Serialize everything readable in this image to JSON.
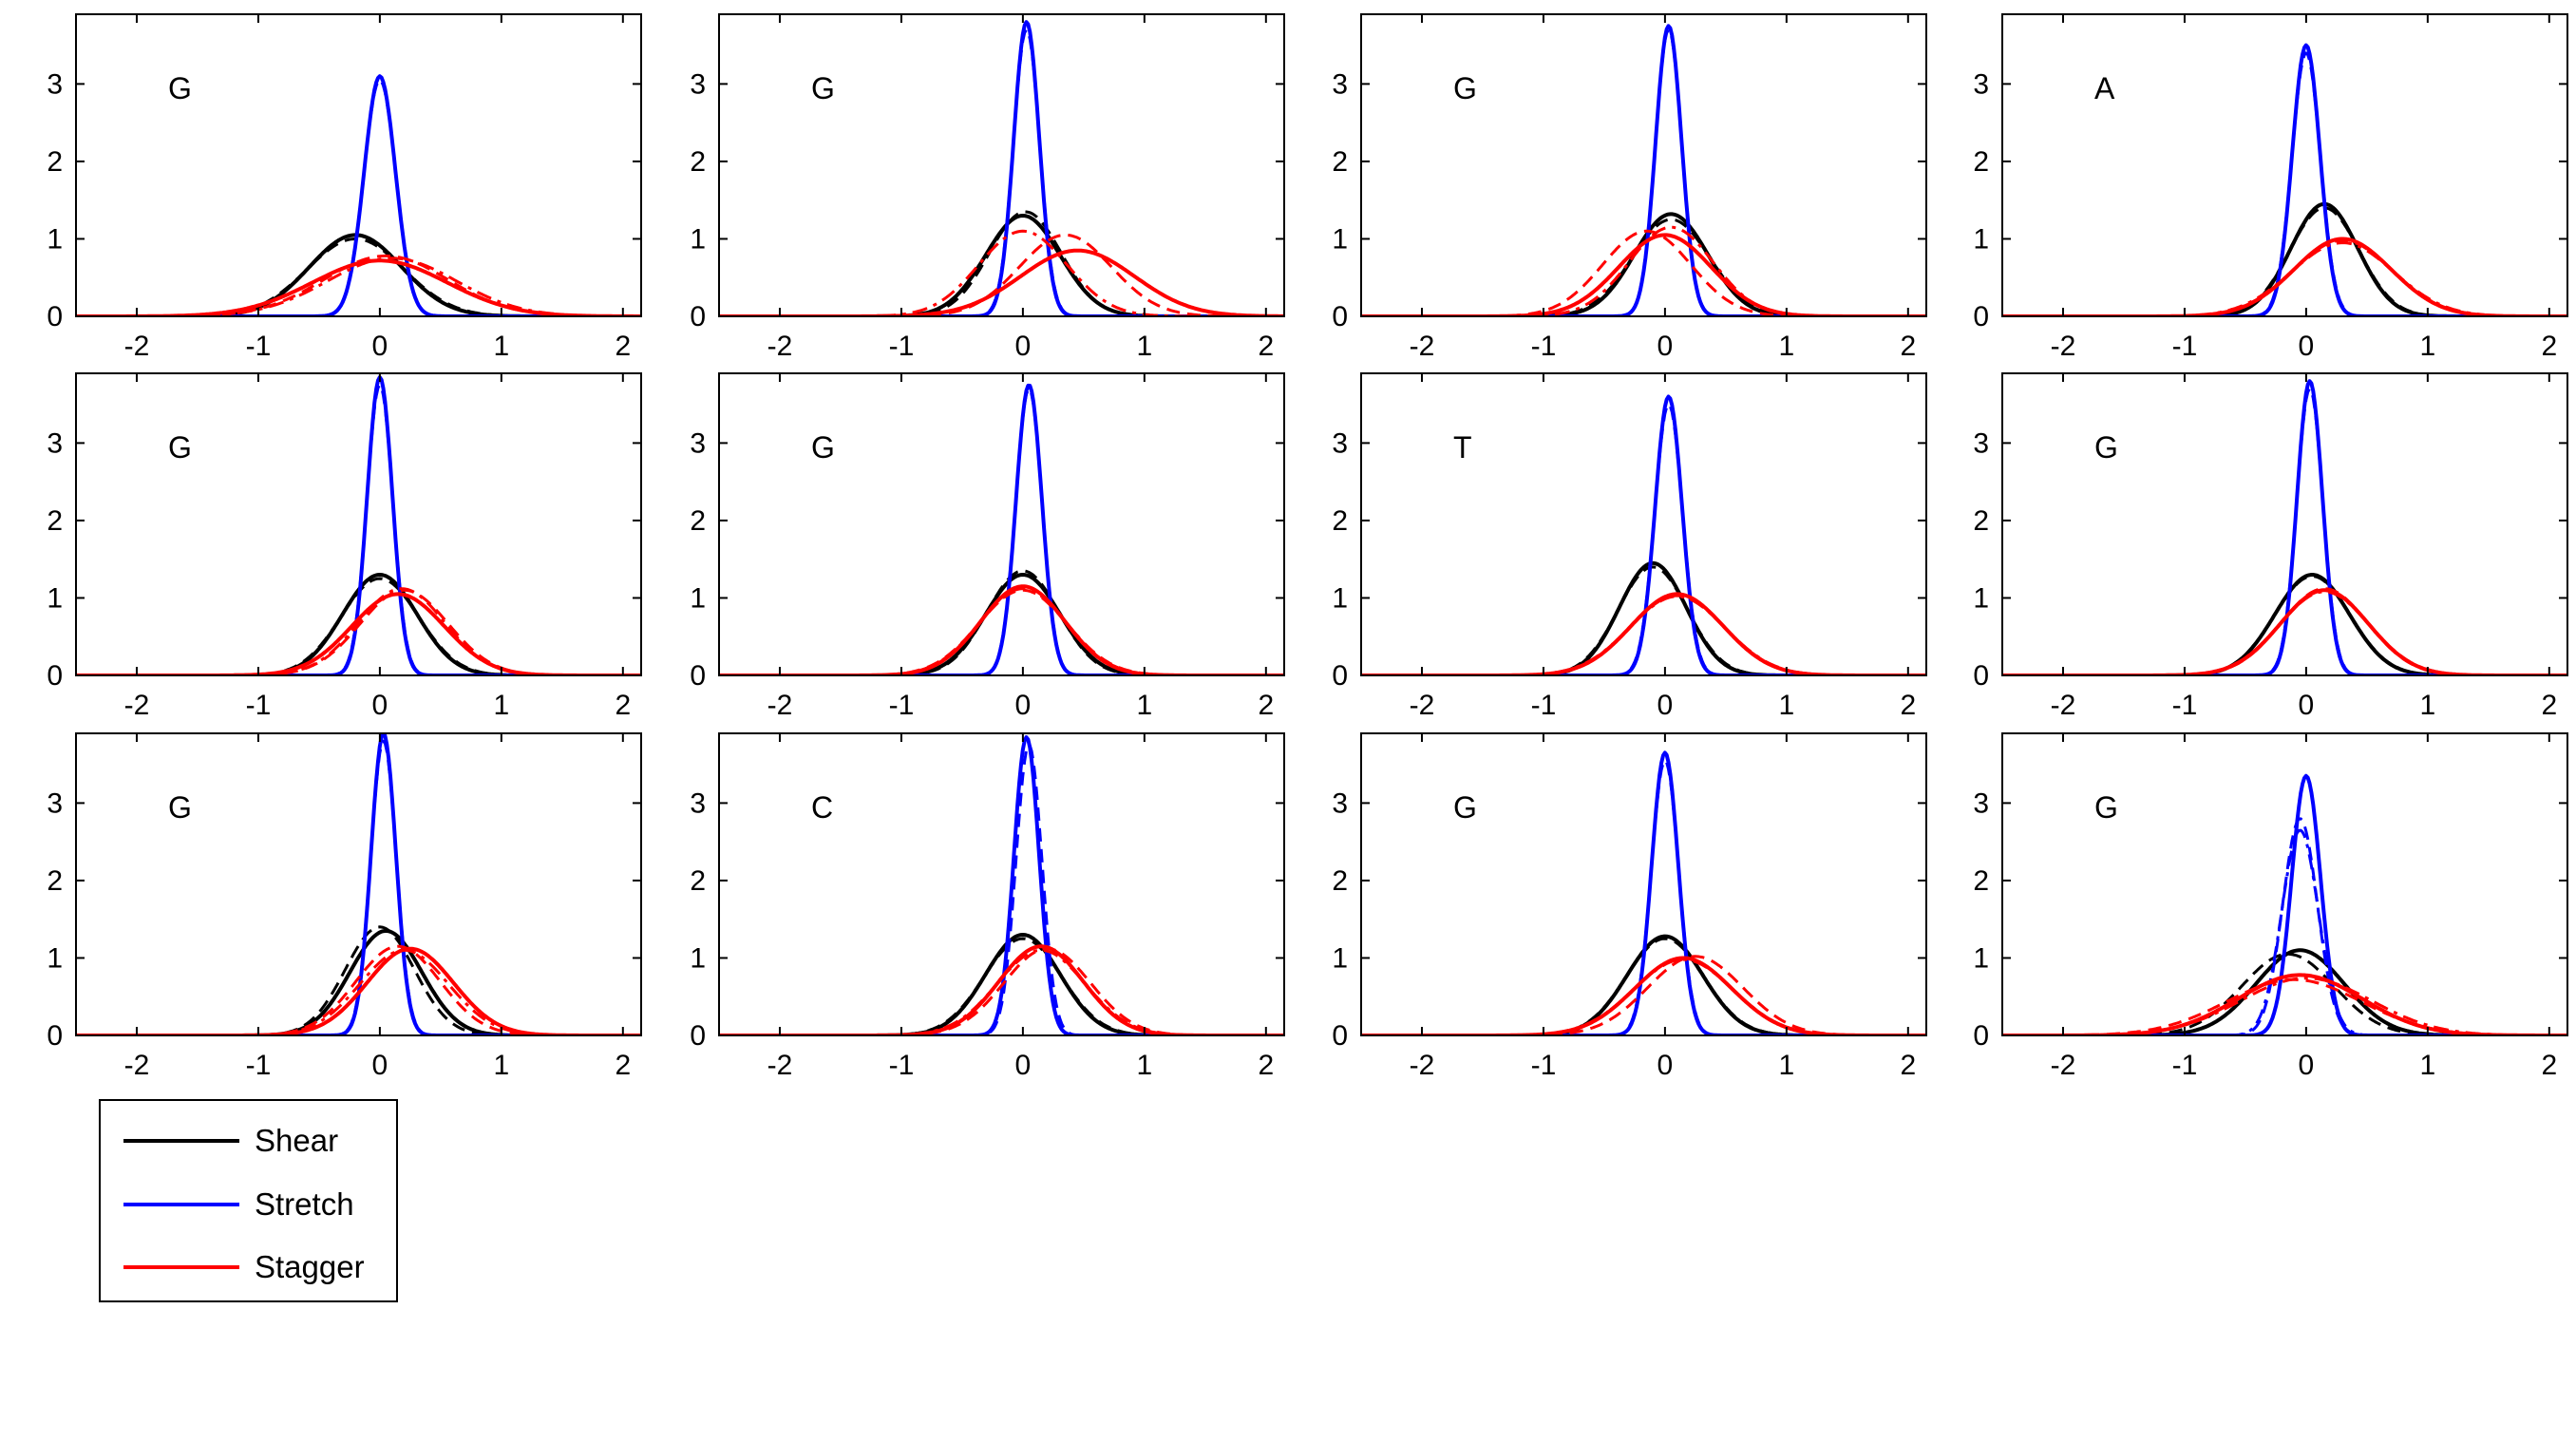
{
  "colors": {
    "shear": "#000000",
    "stretch": "#0000ff",
    "stagger": "#ff0000",
    "axes": "#000000",
    "background": "#ffffff"
  },
  "legend": {
    "placement": "below-left",
    "entries": [
      {
        "series": "shear",
        "label": "Shear"
      },
      {
        "series": "stretch",
        "label": "Stretch"
      },
      {
        "series": "stagger",
        "label": "Stagger"
      }
    ]
  },
  "chart_data": [
    {
      "type": "line",
      "panel_label": "G",
      "xlim": [
        -2.5,
        2.15
      ],
      "ylim": [
        0,
        3.9
      ],
      "xticks": [
        -2,
        -1,
        0,
        1,
        2
      ],
      "yticks": [
        0,
        1,
        2,
        3
      ],
      "grid": false,
      "series": [
        {
          "name": "Shear",
          "style": "solid",
          "mean": -0.2,
          "peak": 1.05
        },
        {
          "name": "Shear",
          "style": "dashed",
          "mean": -0.2,
          "peak": 1.0
        },
        {
          "name": "Stretch",
          "style": "solid",
          "mean": 0.0,
          "peak": 3.1
        },
        {
          "name": "Stretch",
          "style": "dashed",
          "mean": 0.0,
          "peak": 3.05
        },
        {
          "name": "Stagger",
          "style": "solid",
          "mean": 0.0,
          "peak": 0.72
        },
        {
          "name": "Stagger",
          "style": "dashed",
          "mean": 0.05,
          "peak": 0.78
        },
        {
          "name": "Stagger",
          "style": "dashdot",
          "mean": 0.1,
          "peak": 0.75
        }
      ]
    },
    {
      "type": "line",
      "panel_label": "G",
      "xlim": [
        -2.5,
        2.15
      ],
      "ylim": [
        0,
        3.9
      ],
      "xticks": [
        -2,
        -1,
        0,
        1,
        2
      ],
      "yticks": [
        0,
        1,
        2,
        3
      ],
      "grid": false,
      "series": [
        {
          "name": "Shear",
          "style": "solid",
          "mean": 0.0,
          "peak": 1.3
        },
        {
          "name": "Shear",
          "style": "dashed",
          "mean": 0.02,
          "peak": 1.35
        },
        {
          "name": "Stretch",
          "style": "solid",
          "mean": 0.03,
          "peak": 3.8
        },
        {
          "name": "Stretch",
          "style": "dashed",
          "mean": 0.03,
          "peak": 3.7
        },
        {
          "name": "Stagger",
          "style": "solid",
          "mean": 0.45,
          "peak": 0.85
        },
        {
          "name": "Stagger",
          "style": "dashed",
          "mean": 0.35,
          "peak": 1.05
        },
        {
          "name": "Stagger",
          "style": "dashdot",
          "mean": 0.0,
          "peak": 1.1
        }
      ]
    },
    {
      "type": "line",
      "panel_label": "G",
      "xlim": [
        -2.5,
        2.15
      ],
      "ylim": [
        0,
        3.9
      ],
      "xticks": [
        -2,
        -1,
        0,
        1,
        2
      ],
      "yticks": [
        0,
        1,
        2,
        3
      ],
      "grid": false,
      "series": [
        {
          "name": "Shear",
          "style": "solid",
          "mean": 0.05,
          "peak": 1.32
        },
        {
          "name": "Shear",
          "style": "dashed",
          "mean": 0.05,
          "peak": 1.25
        },
        {
          "name": "Stretch",
          "style": "solid",
          "mean": 0.03,
          "peak": 3.75
        },
        {
          "name": "Stretch",
          "style": "dashed",
          "mean": 0.03,
          "peak": 3.7
        },
        {
          "name": "Stagger",
          "style": "solid",
          "mean": 0.0,
          "peak": 1.05
        },
        {
          "name": "Stagger",
          "style": "dashed",
          "mean": -0.15,
          "peak": 1.1
        },
        {
          "name": "Stagger",
          "style": "dashdot",
          "mean": 0.05,
          "peak": 1.15
        }
      ]
    },
    {
      "type": "line",
      "panel_label": "A",
      "xlim": [
        -2.5,
        2.15
      ],
      "ylim": [
        0,
        3.9
      ],
      "xticks": [
        -2,
        -1,
        0,
        1,
        2
      ],
      "yticks": [
        0,
        1,
        2,
        3
      ],
      "grid": false,
      "series": [
        {
          "name": "Shear",
          "style": "solid",
          "mean": 0.15,
          "peak": 1.45
        },
        {
          "name": "Shear",
          "style": "dashed",
          "mean": 0.15,
          "peak": 1.4
        },
        {
          "name": "Stretch",
          "style": "solid",
          "mean": 0.0,
          "peak": 3.5
        },
        {
          "name": "Stretch",
          "style": "dashed",
          "mean": 0.0,
          "peak": 3.4
        },
        {
          "name": "Stagger",
          "style": "solid",
          "mean": 0.3,
          "peak": 1.0
        },
        {
          "name": "Stagger",
          "style": "dashed",
          "mean": 0.3,
          "peak": 0.98
        },
        {
          "name": "Stagger",
          "style": "dashdot",
          "mean": 0.3,
          "peak": 0.95
        }
      ]
    },
    {
      "type": "line",
      "panel_label": "G",
      "xlim": [
        -2.5,
        2.15
      ],
      "ylim": [
        0,
        3.9
      ],
      "xticks": [
        -2,
        -1,
        0,
        1,
        2
      ],
      "yticks": [
        0,
        1,
        2,
        3
      ],
      "grid": false,
      "series": [
        {
          "name": "Shear",
          "style": "solid",
          "mean": 0.0,
          "peak": 1.3
        },
        {
          "name": "Shear",
          "style": "dashed",
          "mean": 0.0,
          "peak": 1.25
        },
        {
          "name": "Stretch",
          "style": "solid",
          "mean": 0.0,
          "peak": 3.85
        },
        {
          "name": "Stretch",
          "style": "dashed",
          "mean": 0.0,
          "peak": 3.75
        },
        {
          "name": "Stagger",
          "style": "solid",
          "mean": 0.15,
          "peak": 1.05
        },
        {
          "name": "Stagger",
          "style": "dashed",
          "mean": 0.2,
          "peak": 1.1
        },
        {
          "name": "Stagger",
          "style": "dashdot",
          "mean": 0.18,
          "peak": 1.12
        }
      ]
    },
    {
      "type": "line",
      "panel_label": "G",
      "xlim": [
        -2.5,
        2.15
      ],
      "ylim": [
        0,
        3.9
      ],
      "xticks": [
        -2,
        -1,
        0,
        1,
        2
      ],
      "yticks": [
        0,
        1,
        2,
        3
      ],
      "grid": false,
      "series": [
        {
          "name": "Shear",
          "style": "solid",
          "mean": 0.0,
          "peak": 1.3
        },
        {
          "name": "Shear",
          "style": "dashed",
          "mean": 0.0,
          "peak": 1.35
        },
        {
          "name": "Stretch",
          "style": "solid",
          "mean": 0.05,
          "peak": 3.75
        },
        {
          "name": "Stretch",
          "style": "dashed",
          "mean": 0.05,
          "peak": 3.7
        },
        {
          "name": "Stagger",
          "style": "solid",
          "mean": 0.0,
          "peak": 1.15
        },
        {
          "name": "Stagger",
          "style": "dashed",
          "mean": 0.0,
          "peak": 1.1
        },
        {
          "name": "Stagger",
          "style": "dashdot",
          "mean": 0.0,
          "peak": 1.12
        }
      ]
    },
    {
      "type": "line",
      "panel_label": "T",
      "xlim": [
        -2.5,
        2.15
      ],
      "ylim": [
        0,
        3.9
      ],
      "xticks": [
        -2,
        -1,
        0,
        1,
        2
      ],
      "yticks": [
        0,
        1,
        2,
        3
      ],
      "grid": false,
      "series": [
        {
          "name": "Shear",
          "style": "solid",
          "mean": -0.1,
          "peak": 1.45
        },
        {
          "name": "Shear",
          "style": "dashed",
          "mean": -0.1,
          "peak": 1.4
        },
        {
          "name": "Stretch",
          "style": "solid",
          "mean": 0.03,
          "peak": 3.6
        },
        {
          "name": "Stretch",
          "style": "dashed",
          "mean": 0.03,
          "peak": 3.5
        },
        {
          "name": "Stagger",
          "style": "solid",
          "mean": 0.1,
          "peak": 1.05
        },
        {
          "name": "Stagger",
          "style": "dashed",
          "mean": 0.1,
          "peak": 1.03
        },
        {
          "name": "Stagger",
          "style": "dashdot",
          "mean": 0.1,
          "peak": 1.02
        }
      ]
    },
    {
      "type": "line",
      "panel_label": "G",
      "xlim": [
        -2.5,
        2.15
      ],
      "ylim": [
        0,
        3.9
      ],
      "xticks": [
        -2,
        -1,
        0,
        1,
        2
      ],
      "yticks": [
        0,
        1,
        2,
        3
      ],
      "grid": false,
      "series": [
        {
          "name": "Shear",
          "style": "solid",
          "mean": 0.05,
          "peak": 1.3
        },
        {
          "name": "Shear",
          "style": "dashed",
          "mean": 0.05,
          "peak": 1.28
        },
        {
          "name": "Stretch",
          "style": "solid",
          "mean": 0.03,
          "peak": 3.8
        },
        {
          "name": "Stretch",
          "style": "dashed",
          "mean": 0.03,
          "peak": 3.7
        },
        {
          "name": "Stagger",
          "style": "solid",
          "mean": 0.15,
          "peak": 1.1
        },
        {
          "name": "Stagger",
          "style": "dashed",
          "mean": 0.15,
          "peak": 1.12
        },
        {
          "name": "Stagger",
          "style": "dashdot",
          "mean": 0.15,
          "peak": 1.08
        }
      ]
    },
    {
      "type": "line",
      "panel_label": "G",
      "xlim": [
        -2.5,
        2.15
      ],
      "ylim": [
        0,
        3.9
      ],
      "xticks": [
        -2,
        -1,
        0,
        1,
        2
      ],
      "yticks": [
        0,
        1,
        2,
        3
      ],
      "grid": false,
      "series": [
        {
          "name": "Shear",
          "style": "solid",
          "mean": 0.05,
          "peak": 1.35
        },
        {
          "name": "Shear",
          "style": "dashed",
          "mean": 0.0,
          "peak": 1.4
        },
        {
          "name": "Stretch",
          "style": "solid",
          "mean": 0.03,
          "peak": 3.9
        },
        {
          "name": "Stretch",
          "style": "dashed",
          "mean": 0.03,
          "peak": 3.8
        },
        {
          "name": "Stagger",
          "style": "solid",
          "mean": 0.25,
          "peak": 1.12
        },
        {
          "name": "Stagger",
          "style": "dashed",
          "mean": 0.15,
          "peak": 1.15
        },
        {
          "name": "Stagger",
          "style": "dashdot",
          "mean": 0.2,
          "peak": 1.1
        }
      ]
    },
    {
      "type": "line",
      "panel_label": "C",
      "xlim": [
        -2.5,
        2.15
      ],
      "ylim": [
        0,
        3.9
      ],
      "xticks": [
        -2,
        -1,
        0,
        1,
        2
      ],
      "yticks": [
        0,
        1,
        2,
        3
      ],
      "grid": false,
      "series": [
        {
          "name": "Shear",
          "style": "solid",
          "mean": 0.0,
          "peak": 1.3
        },
        {
          "name": "Shear",
          "style": "dashed",
          "mean": 0.0,
          "peak": 1.25
        },
        {
          "name": "Stretch",
          "style": "solid",
          "mean": 0.03,
          "peak": 3.85
        },
        {
          "name": "Stretch",
          "style": "dashed",
          "mean": 0.05,
          "peak": 3.75
        },
        {
          "name": "Stagger",
          "style": "solid",
          "mean": 0.15,
          "peak": 1.15
        },
        {
          "name": "Stagger",
          "style": "dashed",
          "mean": 0.2,
          "peak": 1.12
        },
        {
          "name": "Stagger",
          "style": "dashdot",
          "mean": 0.15,
          "peak": 1.1
        }
      ]
    },
    {
      "type": "line",
      "panel_label": "G",
      "xlim": [
        -2.5,
        2.15
      ],
      "ylim": [
        0,
        3.9
      ],
      "xticks": [
        -2,
        -1,
        0,
        1,
        2
      ],
      "yticks": [
        0,
        1,
        2,
        3
      ],
      "grid": false,
      "series": [
        {
          "name": "Shear",
          "style": "solid",
          "mean": 0.0,
          "peak": 1.28
        },
        {
          "name": "Shear",
          "style": "dashed",
          "mean": 0.0,
          "peak": 1.25
        },
        {
          "name": "Stretch",
          "style": "solid",
          "mean": 0.0,
          "peak": 3.65
        },
        {
          "name": "Stretch",
          "style": "dashed",
          "mean": 0.0,
          "peak": 3.55
        },
        {
          "name": "Stagger",
          "style": "solid",
          "mean": 0.15,
          "peak": 1.0
        },
        {
          "name": "Stagger",
          "style": "dashed",
          "mean": 0.25,
          "peak": 1.02
        },
        {
          "name": "Stagger",
          "style": "dashdot",
          "mean": 0.15,
          "peak": 0.98
        }
      ]
    },
    {
      "type": "line",
      "panel_label": "G",
      "xlim": [
        -2.5,
        2.15
      ],
      "ylim": [
        0,
        3.9
      ],
      "xticks": [
        -2,
        -1,
        0,
        1,
        2
      ],
      "yticks": [
        0,
        1,
        2,
        3
      ],
      "grid": false,
      "series": [
        {
          "name": "Shear",
          "style": "solid",
          "mean": -0.05,
          "peak": 1.1
        },
        {
          "name": "Shear",
          "style": "dashed",
          "mean": -0.15,
          "peak": 1.05
        },
        {
          "name": "Stretch",
          "style": "solid",
          "mean": 0.0,
          "peak": 3.35
        },
        {
          "name": "Stretch",
          "style": "dashed",
          "mean": -0.05,
          "peak": 2.8
        },
        {
          "name": "Stretch",
          "style": "dashdot",
          "mean": -0.05,
          "peak": 2.65
        },
        {
          "name": "Stagger",
          "style": "solid",
          "mean": -0.05,
          "peak": 0.78
        },
        {
          "name": "Stagger",
          "style": "dashed",
          "mean": -0.1,
          "peak": 0.72
        },
        {
          "name": "Stagger",
          "style": "dashdot",
          "mean": 0.0,
          "peak": 0.74
        }
      ]
    }
  ]
}
